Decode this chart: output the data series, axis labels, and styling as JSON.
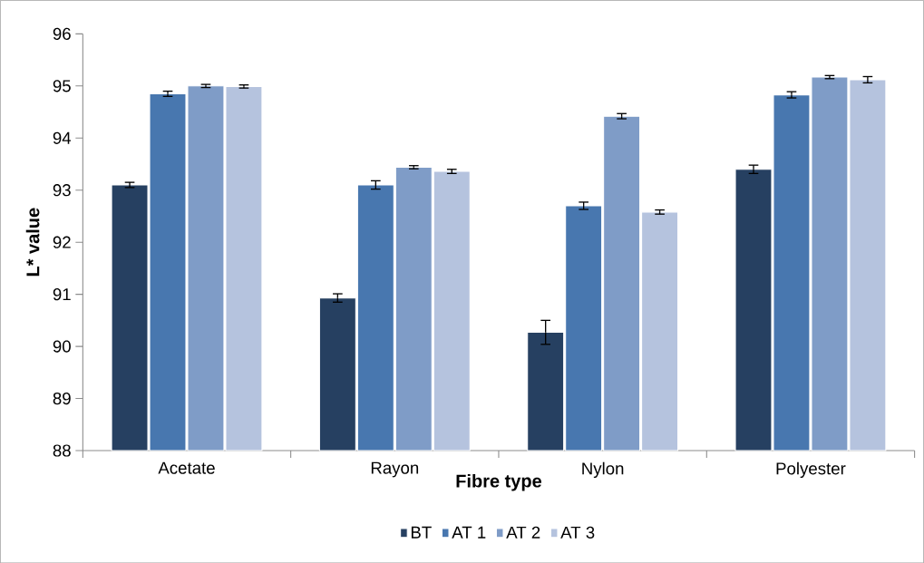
{
  "chart_data": {
    "type": "bar",
    "xlabel": "Fibre type",
    "ylabel": "L* value",
    "categories": [
      "Acetate",
      "Rayon",
      "Nylon",
      "Polyester"
    ],
    "series": [
      {
        "name": "BT",
        "color": "#264061",
        "values": [
          93.1,
          90.93,
          90.27,
          93.4
        ],
        "errors": [
          0.05,
          0.08,
          0.23,
          0.08
        ]
      },
      {
        "name": "AT 1",
        "color": "#4877af",
        "values": [
          94.85,
          93.1,
          92.7,
          94.83
        ],
        "errors": [
          0.05,
          0.08,
          0.07,
          0.06
        ]
      },
      {
        "name": "AT 2",
        "color": "#7f9cc7",
        "values": [
          95.0,
          93.44,
          94.42,
          95.17
        ],
        "errors": [
          0.03,
          0.03,
          0.05,
          0.03
        ]
      },
      {
        "name": "AT 3",
        "color": "#b5c3de",
        "values": [
          94.99,
          93.36,
          92.58,
          95.12
        ],
        "errors": [
          0.03,
          0.04,
          0.04,
          0.06
        ]
      }
    ],
    "ylim": [
      88,
      96
    ],
    "yticks": [
      88,
      89,
      90,
      91,
      92,
      93,
      94,
      95,
      96
    ],
    "grid": false,
    "legend": "bottom"
  }
}
